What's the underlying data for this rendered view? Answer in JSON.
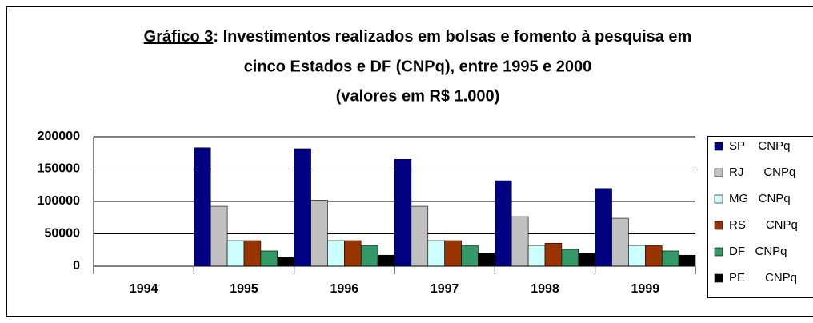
{
  "chart_data": {
    "type": "bar",
    "title": [
      "Gráfico 3",
      ": Investimentos realizados em bolsas e fomento à pesquisa em",
      "cinco Estados e DF (CNPq), entre 1995 e 2000",
      "(valores em R$ 1.000)"
    ],
    "categories": [
      "1994",
      "1995",
      "1996",
      "1997",
      "1998",
      "1999"
    ],
    "series": [
      {
        "name": "SP    CNPq",
        "color": "#000080",
        "values": [
          null,
          183000,
          181500,
          165000,
          132000,
          120000
        ]
      },
      {
        "name": "RJ      CNPq",
        "color": "#c0c0c0",
        "values": [
          null,
          92500,
          102000,
          92500,
          76500,
          74000
        ]
      },
      {
        "name": "MG   CNPq",
        "color": "#ccffff",
        "values": [
          null,
          39500,
          39500,
          39500,
          32000,
          32000
        ]
      },
      {
        "name": "RS      CNPq",
        "color": "#993300",
        "values": [
          null,
          39500,
          39500,
          39500,
          35500,
          32000
        ]
      },
      {
        "name": "DF   CNPq",
        "color": "#339966",
        "values": [
          null,
          23500,
          32000,
          32000,
          26000,
          23500
        ]
      },
      {
        "name": "PE      CNPq",
        "color": "#000000",
        "values": [
          null,
          13500,
          17000,
          19500,
          19500,
          17000
        ]
      }
    ],
    "ylim": [
      0,
      200000
    ],
    "yticks": [
      0,
      50000,
      100000,
      150000,
      200000
    ],
    "grid": true,
    "legend": "right"
  }
}
